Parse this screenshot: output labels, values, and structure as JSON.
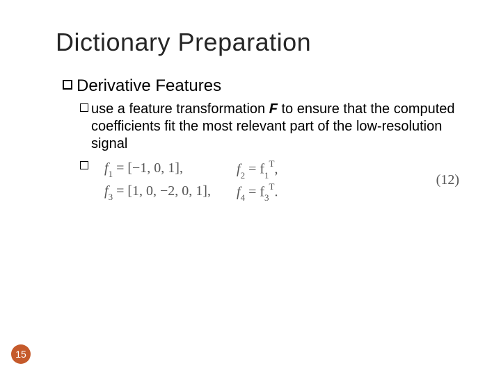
{
  "title": "Dictionary Preparation",
  "level1": {
    "text": "Derivative Features"
  },
  "level2": {
    "pre": "use a feature transformation ",
    "F": "F",
    "post": " to ensure that the computed coefficients fit the most relevant part of the low-resolution signal"
  },
  "equations": {
    "row1": {
      "left_var": "f",
      "left_sub": "1",
      "left_rhs": " = [−1, 0, 1],",
      "right_var": "f",
      "right_sub": "2",
      "right_rhs": " = f",
      "right_rhs_sub": "1",
      "right_rhs_sup": "T",
      "right_tail": ","
    },
    "row2": {
      "left_var": "f",
      "left_sub": "3",
      "left_rhs": " = [1, 0, −2, 0, 1],",
      "right_var": "f",
      "right_sub": "4",
      "right_rhs": " = f",
      "right_rhs_sub": "3",
      "right_rhs_sup": "T",
      "right_tail": "."
    },
    "label": "(12)"
  },
  "slide_number": "15",
  "colors": {
    "slide_num_bg": "#c55a2b",
    "slide_num_fg": "#ffffff",
    "eq_color": "#555555"
  }
}
